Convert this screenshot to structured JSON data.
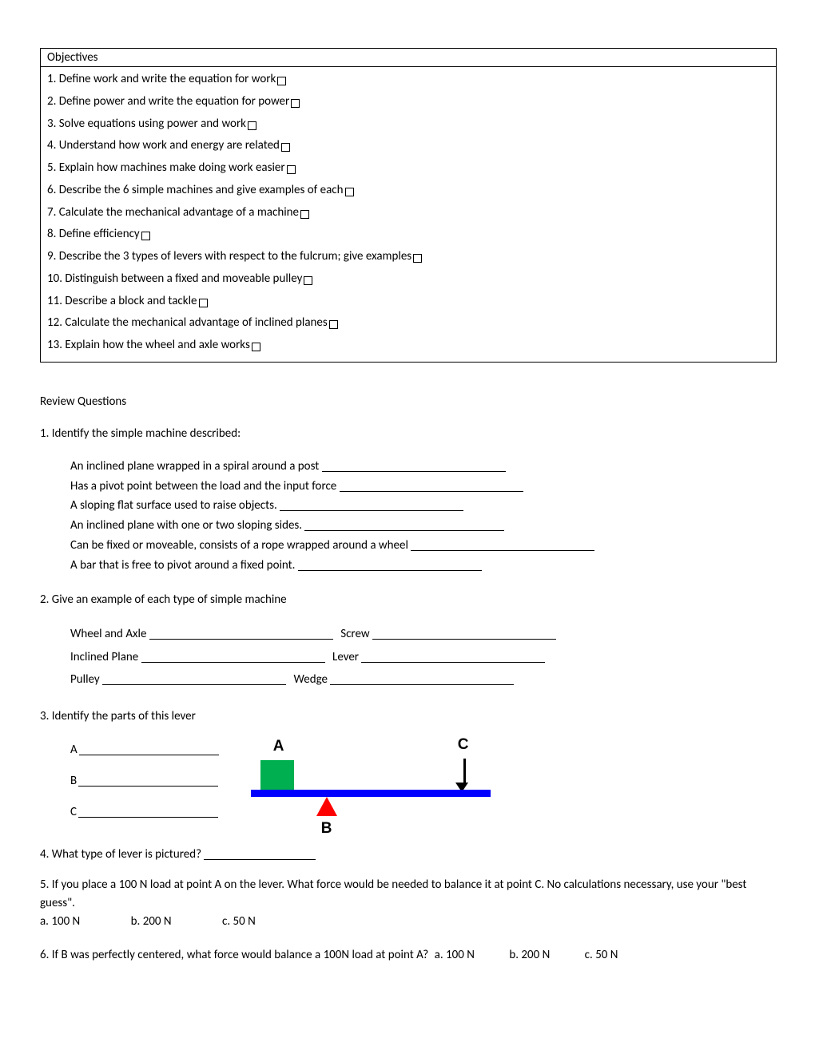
{
  "objectives": {
    "header": "Objectives",
    "items": [
      "1.  Define work and write the equation for work",
      "2.  Define power and write the equation for power",
      "3.  Solve equations using power and work",
      "4.  Understand how work and energy are related",
      "5.  Explain how machines make doing work easier",
      "6.  Describe the 6 simple machines and give examples of each",
      "7.  Calculate the mechanical advantage of a machine",
      "8.  Define efficiency",
      "9.  Describe the 3 types of levers with respect to the fulcrum; give examples",
      "10.  Distinguish between a fixed and moveable pulley",
      "11.  Describe a block and tackle",
      "12.  Calculate the mechanical advantage of inclined planes",
      "13.  Explain how the wheel and axle works"
    ]
  },
  "review_title": "Review Questions",
  "q1": {
    "prompt": "1.  Identify the simple machine described:",
    "items": [
      "An inclined plane wrapped in a spiral around a post",
      "Has a pivot point between the load and the input force",
      "A sloping flat surface used to raise objects.",
      "An inclined plane with one or two sloping sides.",
      "Can be fixed or moveable, consists of a rope wrapped around a wheel",
      "A bar that is free to pivot around a fixed point."
    ]
  },
  "q2": {
    "prompt": "2.  Give an example of each type of simple machine",
    "pairs": [
      [
        "Wheel and Axle",
        "Screw"
      ],
      [
        "Inclined Plane",
        "Lever"
      ],
      [
        "Pulley",
        "Wedge"
      ]
    ]
  },
  "q3": {
    "prompt": "3.  Identify the parts of this lever",
    "answers": [
      "A",
      "B",
      "C"
    ],
    "diagram": {
      "labels": {
        "A": "A",
        "B": "B",
        "C": "C"
      },
      "colors": {
        "load": "#00b050",
        "bar": "#0000ff",
        "fulcrum": "#ff0000",
        "arrow": "#000000",
        "label_text": "#000000"
      }
    }
  },
  "q4": "4.  What type of lever is pictured?",
  "q5": {
    "text": "5.  If you place a 100 N load at point A on the lever.  What force would be needed to balance it at point C.  No calculations necessary, use your \"best guess\".",
    "a": "a.  100 N",
    "b": "b.  200 N",
    "c": "c.  50 N"
  },
  "q6": {
    "text": "6.  If B was perfectly centered, what force would balance a 100N load at point A?",
    "a": "a.  100 N",
    "b": "b.  200 N",
    "c": "c.  50 N"
  }
}
